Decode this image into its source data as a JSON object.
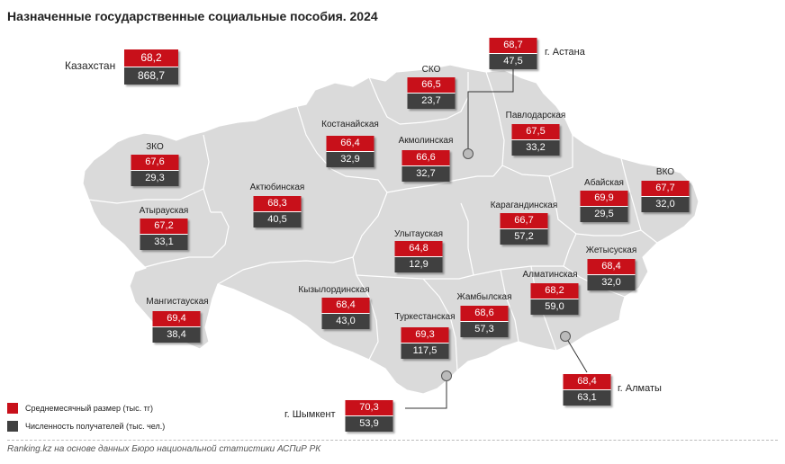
{
  "title": "Назначенные государственные социальные пособия. 2024",
  "source": "Ranking.kz на основе данных Бюро национальной статистики АСПиР РК",
  "colors": {
    "amount": "#c8101a",
    "recipients": "#404040",
    "map_fill": "#dadada",
    "border": "#ffffff"
  },
  "legend": {
    "amount": "Среднемесячный размер (тыс. тг)",
    "recipients": "Численность получателей (тыс. чел.)"
  },
  "kazakhstan": {
    "name": "Казахстан",
    "amount": "68,2",
    "recipients": "868,7"
  },
  "regions": {
    "sko": {
      "name": "СКО",
      "amount": "66,5",
      "recipients": "23,7"
    },
    "kostanay": {
      "name": "Костанайская",
      "amount": "66,4",
      "recipients": "32,9"
    },
    "akmola": {
      "name": "Акмолинская",
      "amount": "66,6",
      "recipients": "32,7"
    },
    "pavlodar": {
      "name": "Павлодарская",
      "amount": "67,5",
      "recipients": "33,2"
    },
    "zko": {
      "name": "ЗКО",
      "amount": "67,6",
      "recipients": "29,3"
    },
    "aktobe": {
      "name": "Актюбинская",
      "amount": "68,3",
      "recipients": "40,5"
    },
    "abai": {
      "name": "Абайская",
      "amount": "69,9",
      "recipients": "29,5"
    },
    "vko": {
      "name": "ВКО",
      "amount": "67,7",
      "recipients": "32,0"
    },
    "atyrau": {
      "name": "Атырауская",
      "amount": "67,2",
      "recipients": "33,1"
    },
    "karaganda": {
      "name": "Карагандинская",
      "amount": "66,7",
      "recipients": "57,2"
    },
    "ulytau": {
      "name": "Улытауская",
      "amount": "64,8",
      "recipients": "12,9"
    },
    "zhetysu": {
      "name": "Жетысуская",
      "amount": "68,4",
      "recipients": "32,0"
    },
    "kyzylorda": {
      "name": "Кызылординская",
      "amount": "68,4",
      "recipients": "43,0"
    },
    "almaty_region": {
      "name": "Алматинская",
      "amount": "68,2",
      "recipients": "59,0"
    },
    "mangystau": {
      "name": "Мангистауская",
      "amount": "69,4",
      "recipients": "38,4"
    },
    "zhambyl": {
      "name": "Жамбылская",
      "amount": "68,6",
      "recipients": "57,3"
    },
    "turkestan": {
      "name": "Туркестанская",
      "amount": "69,3",
      "recipients": "117,5"
    }
  },
  "cities": {
    "astana": {
      "name": "г. Астана",
      "amount": "68,7",
      "recipients": "47,5"
    },
    "almaty": {
      "name": "г. Алматы",
      "amount": "68,4",
      "recipients": "63,1"
    },
    "shymkent": {
      "name": "г. Шымкент",
      "amount": "70,3",
      "recipients": "53,9"
    }
  }
}
